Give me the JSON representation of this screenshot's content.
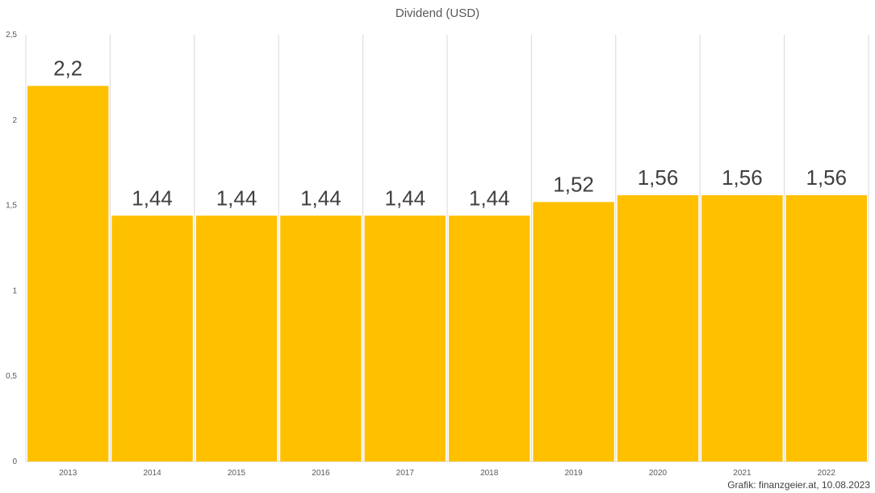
{
  "chart_data": {
    "type": "bar",
    "title": "Dividend (USD)",
    "xlabel": "",
    "ylabel": "",
    "categories": [
      "2013",
      "2014",
      "2015",
      "2016",
      "2017",
      "2018",
      "2019",
      "2020",
      "2021",
      "2022"
    ],
    "values": [
      2.2,
      1.44,
      1.44,
      1.44,
      1.44,
      1.44,
      1.52,
      1.56,
      1.56,
      1.56
    ],
    "value_labels": [
      "2,2",
      "1,44",
      "1,44",
      "1,44",
      "1,44",
      "1,44",
      "1,52",
      "1,56",
      "1,56",
      "1,56"
    ],
    "ylim": [
      0,
      2.5
    ],
    "yticks": [
      0,
      0.5,
      1,
      1.5,
      2,
      2.5
    ],
    "ytick_labels": [
      "0",
      "0,5",
      "1",
      "1,5",
      "2",
      "2,5"
    ],
    "grid": "vertical",
    "legend": "none",
    "bar_color": "#FFC000",
    "gridline_color": "#D9D9D9",
    "annotation": "Grafik: finanzgeier.at, 10.08.2023"
  }
}
